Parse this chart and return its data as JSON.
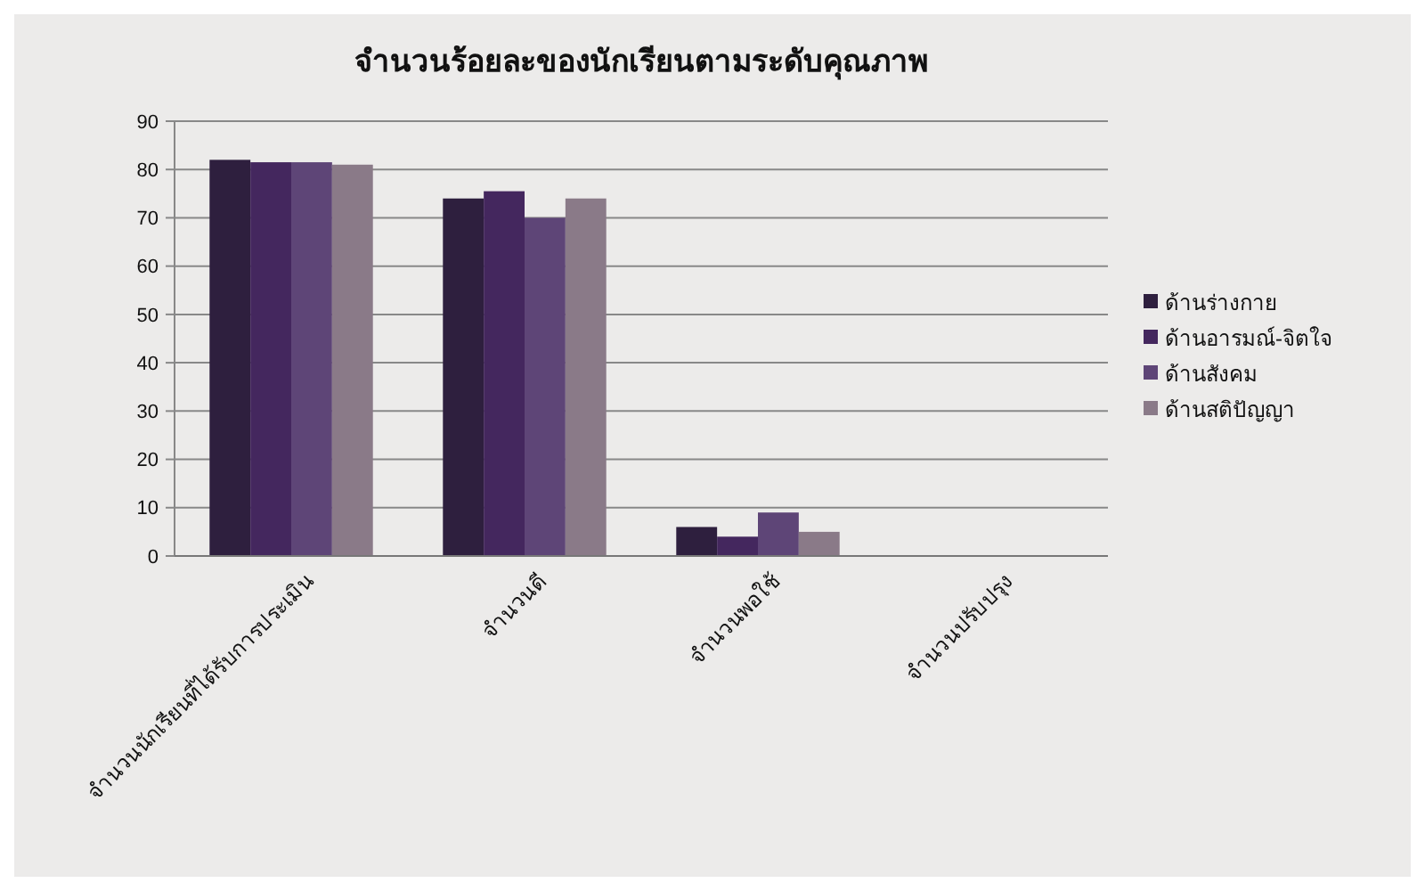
{
  "chart_data": {
    "type": "bar",
    "title": "จำนวนร้อยละของนักเรียนตามระดับคุณภาพ",
    "categories": [
      "จำนวนนักเรียนที่ได้รับการประเมิน",
      "จำนวนดี",
      "จำนวนพอใช้",
      "จำนวนปรับปรุง"
    ],
    "series": [
      {
        "name": "ด้านร่างกาย",
        "color": "#2e1f3e",
        "values": [
          82,
          74,
          6,
          null
        ]
      },
      {
        "name": "ด้านอารมณ์-จิตใจ",
        "color": "#44275e",
        "values": [
          81.5,
          75.5,
          4,
          null
        ]
      },
      {
        "name": "ด้านสังคม",
        "color": "#5e4577",
        "values": [
          81.5,
          70,
          9,
          null
        ]
      },
      {
        "name": "ด้านสติปัญญา",
        "color": "#8a7a88",
        "values": [
          81,
          74,
          5,
          null
        ]
      }
    ],
    "ylim": [
      0,
      90
    ],
    "yticks": [
      0,
      10,
      20,
      30,
      40,
      50,
      60,
      70,
      80,
      90
    ],
    "grid": "y",
    "legend": "right"
  }
}
